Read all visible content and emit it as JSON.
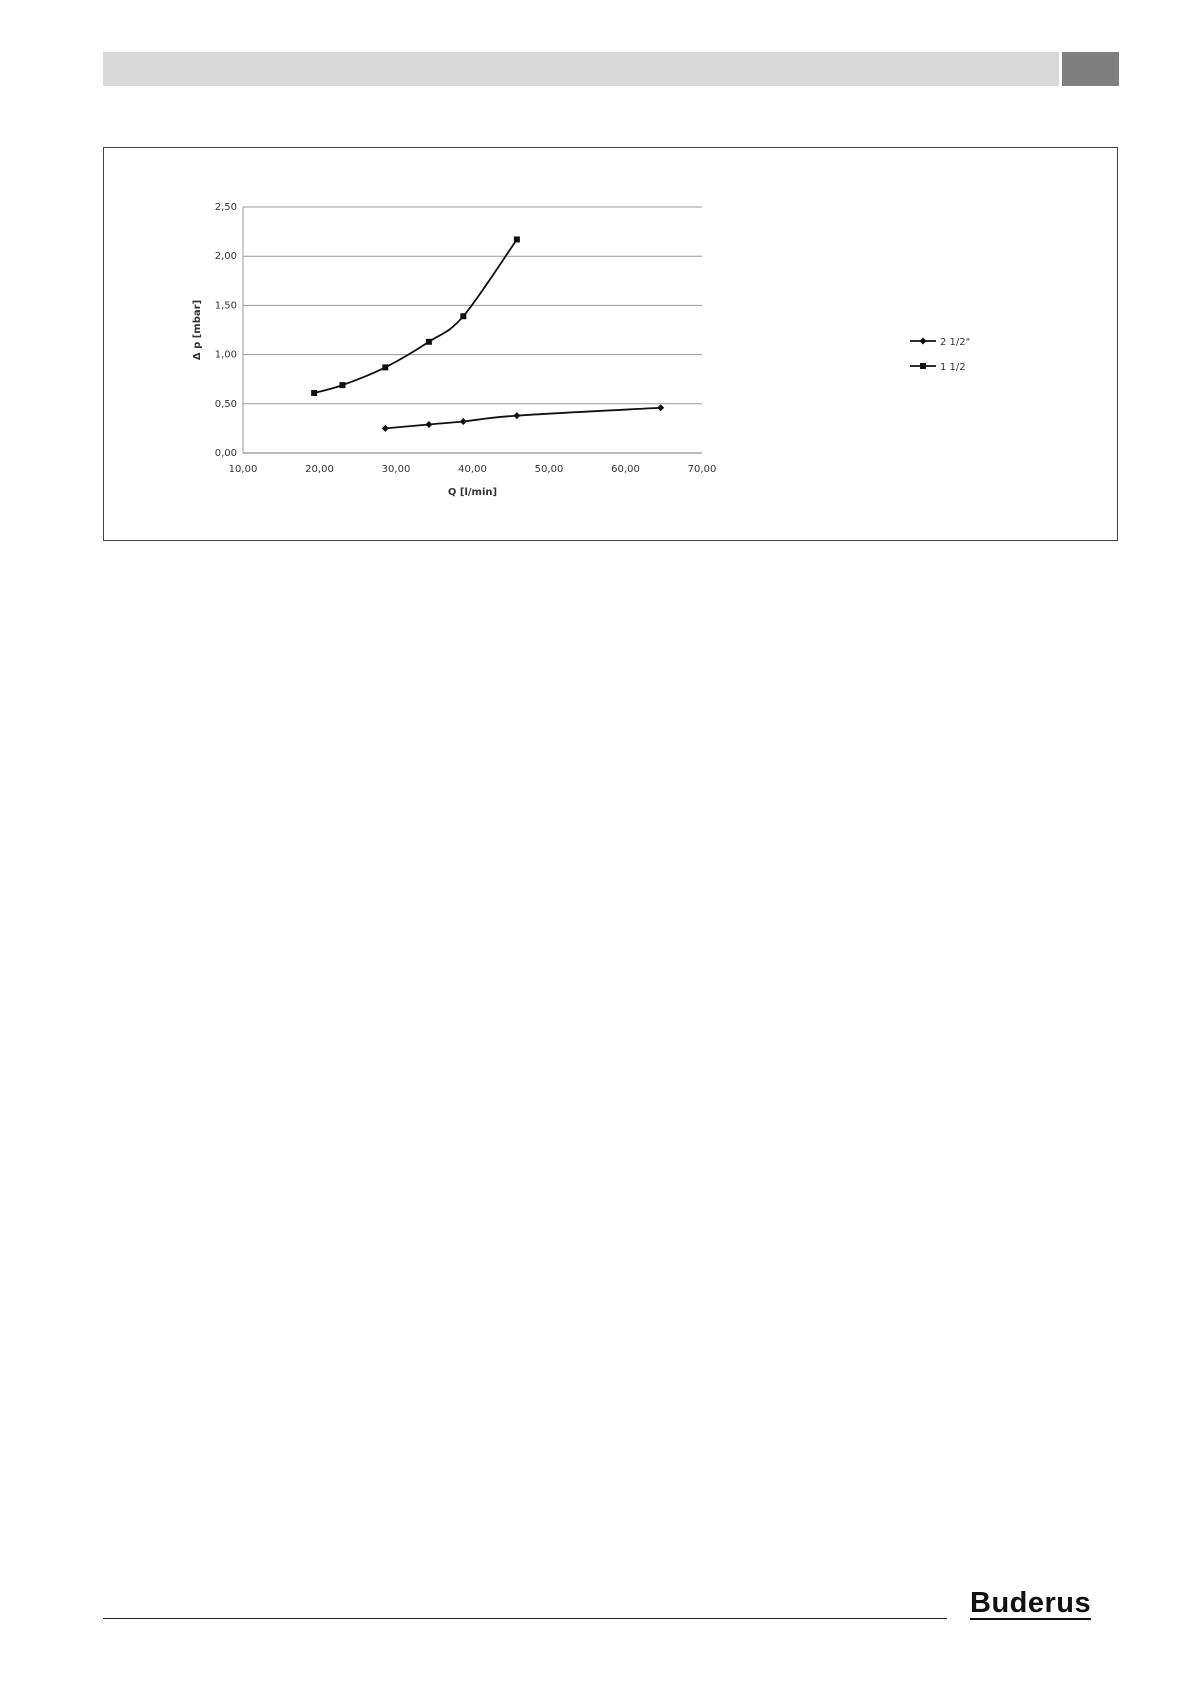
{
  "header": {
    "bar_color": "#d9d9d9",
    "tab_color": "#7f7f7f"
  },
  "chart_data": {
    "type": "line",
    "xlabel": "Q [l/min]",
    "ylabel": "Δ p [mbar]",
    "xlim": [
      10,
      70
    ],
    "ylim": [
      0,
      2.5
    ],
    "xticks": [
      "10,00",
      "20,00",
      "30,00",
      "40,00",
      "50,00",
      "60,00",
      "70,00"
    ],
    "yticks": [
      "0,00",
      "0,50",
      "1,00",
      "1,50",
      "2,00",
      "2,50"
    ],
    "grid": "horizontal",
    "legend": "right",
    "series": [
      {
        "name": "2 1/2\"",
        "marker": "diamond",
        "x": [
          28.6,
          34.3,
          38.8,
          45.8,
          64.6
        ],
        "y": [
          0.25,
          0.29,
          0.32,
          0.38,
          0.46
        ]
      },
      {
        "name": "1 1/2",
        "marker": "square",
        "x": [
          19.3,
          23.0,
          28.6,
          34.3,
          38.8,
          45.8
        ],
        "y": [
          0.61,
          0.69,
          0.87,
          1.13,
          1.39,
          2.17
        ]
      }
    ]
  },
  "footer": {
    "logo": "Buderus"
  }
}
